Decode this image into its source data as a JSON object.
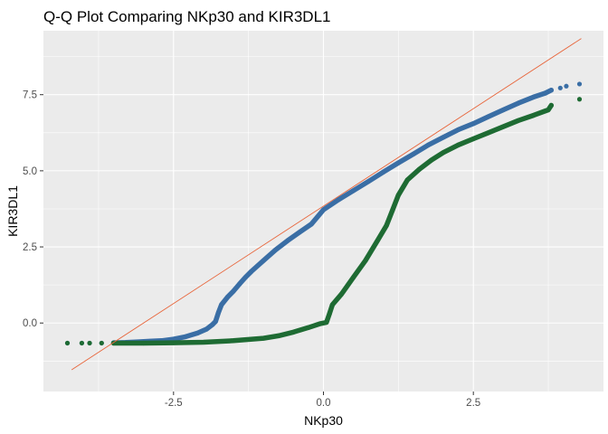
{
  "chart_data": {
    "type": "scatter",
    "title": "Q-Q Plot Comparing NKp30 and KIR3DL1",
    "xlabel": "NKp30",
    "ylabel": "KIR3DL1",
    "xlim": [
      -4.67,
      4.67
    ],
    "ylim": [
      -2.25,
      9.6
    ],
    "x_ticks": [
      -2.5,
      0.0,
      2.5
    ],
    "x_tick_labels": [
      "-2.5",
      "0.0",
      "2.5"
    ],
    "y_ticks": [
      0.0,
      2.5,
      5.0,
      7.5
    ],
    "y_tick_labels": [
      "0.0",
      "2.5",
      "5.0",
      "7.5"
    ],
    "grid": true,
    "legend": "none",
    "reference_line": {
      "intercept": 3.84,
      "slope": 1.28,
      "color": "#e8663c",
      "x_range": [
        -4.2,
        4.3
      ]
    },
    "series": [
      {
        "color": "#3a6ea5",
        "points": [
          [
            -4.27,
            -0.66
          ],
          [
            -4.03,
            -0.66
          ],
          [
            -3.9,
            -0.66
          ],
          [
            -3.7,
            -0.66
          ],
          [
            -3.5,
            -0.65
          ],
          [
            -3.3,
            -0.64
          ],
          [
            -3.1,
            -0.62
          ],
          [
            -2.9,
            -0.6
          ],
          [
            -2.7,
            -0.58
          ],
          [
            -2.5,
            -0.53
          ],
          [
            -2.3,
            -0.45
          ],
          [
            -2.1,
            -0.33
          ],
          [
            -1.95,
            -0.2
          ],
          [
            -1.85,
            -0.05
          ],
          [
            -1.8,
            0.05
          ],
          [
            -1.75,
            0.35
          ],
          [
            -1.7,
            0.6
          ],
          [
            -1.6,
            0.85
          ],
          [
            -1.5,
            1.05
          ],
          [
            -1.4,
            1.28
          ],
          [
            -1.3,
            1.5
          ],
          [
            -1.2,
            1.7
          ],
          [
            -1.0,
            2.05
          ],
          [
            -0.8,
            2.4
          ],
          [
            -0.6,
            2.7
          ],
          [
            -0.4,
            2.98
          ],
          [
            -0.2,
            3.25
          ],
          [
            0.0,
            3.72
          ],
          [
            0.25,
            4.05
          ],
          [
            0.5,
            4.35
          ],
          [
            0.75,
            4.65
          ],
          [
            1.0,
            4.96
          ],
          [
            1.25,
            5.26
          ],
          [
            1.5,
            5.55
          ],
          [
            1.75,
            5.85
          ],
          [
            2.0,
            6.1
          ],
          [
            2.25,
            6.35
          ],
          [
            2.5,
            6.55
          ],
          [
            2.75,
            6.78
          ],
          [
            3.0,
            7.0
          ],
          [
            3.25,
            7.22
          ],
          [
            3.5,
            7.42
          ],
          [
            3.7,
            7.55
          ],
          [
            3.8,
            7.65
          ],
          [
            3.95,
            7.72
          ],
          [
            4.05,
            7.78
          ],
          [
            4.27,
            7.85
          ]
        ]
      },
      {
        "color": "#1e6b33",
        "points": [
          [
            -4.27,
            -0.66
          ],
          [
            -4.03,
            -0.66
          ],
          [
            -3.9,
            -0.66
          ],
          [
            -3.7,
            -0.66
          ],
          [
            -3.5,
            -0.66
          ],
          [
            -3.0,
            -0.66
          ],
          [
            -2.5,
            -0.65
          ],
          [
            -2.0,
            -0.63
          ],
          [
            -1.5,
            -0.58
          ],
          [
            -1.0,
            -0.5
          ],
          [
            -0.75,
            -0.42
          ],
          [
            -0.5,
            -0.3
          ],
          [
            -0.25,
            -0.15
          ],
          [
            -0.05,
            -0.02
          ],
          [
            0.05,
            0.02
          ],
          [
            0.1,
            0.3
          ],
          [
            0.15,
            0.6
          ],
          [
            0.3,
            0.95
          ],
          [
            0.5,
            1.5
          ],
          [
            0.7,
            2.05
          ],
          [
            0.9,
            2.7
          ],
          [
            1.05,
            3.2
          ],
          [
            1.15,
            3.7
          ],
          [
            1.25,
            4.2
          ],
          [
            1.4,
            4.7
          ],
          [
            1.6,
            5.05
          ],
          [
            1.8,
            5.35
          ],
          [
            2.0,
            5.6
          ],
          [
            2.25,
            5.85
          ],
          [
            2.5,
            6.05
          ],
          [
            2.75,
            6.25
          ],
          [
            3.0,
            6.45
          ],
          [
            3.25,
            6.65
          ],
          [
            3.5,
            6.82
          ],
          [
            3.75,
            7.0
          ],
          [
            3.8,
            7.15
          ],
          [
            4.27,
            7.35
          ]
        ]
      }
    ]
  }
}
